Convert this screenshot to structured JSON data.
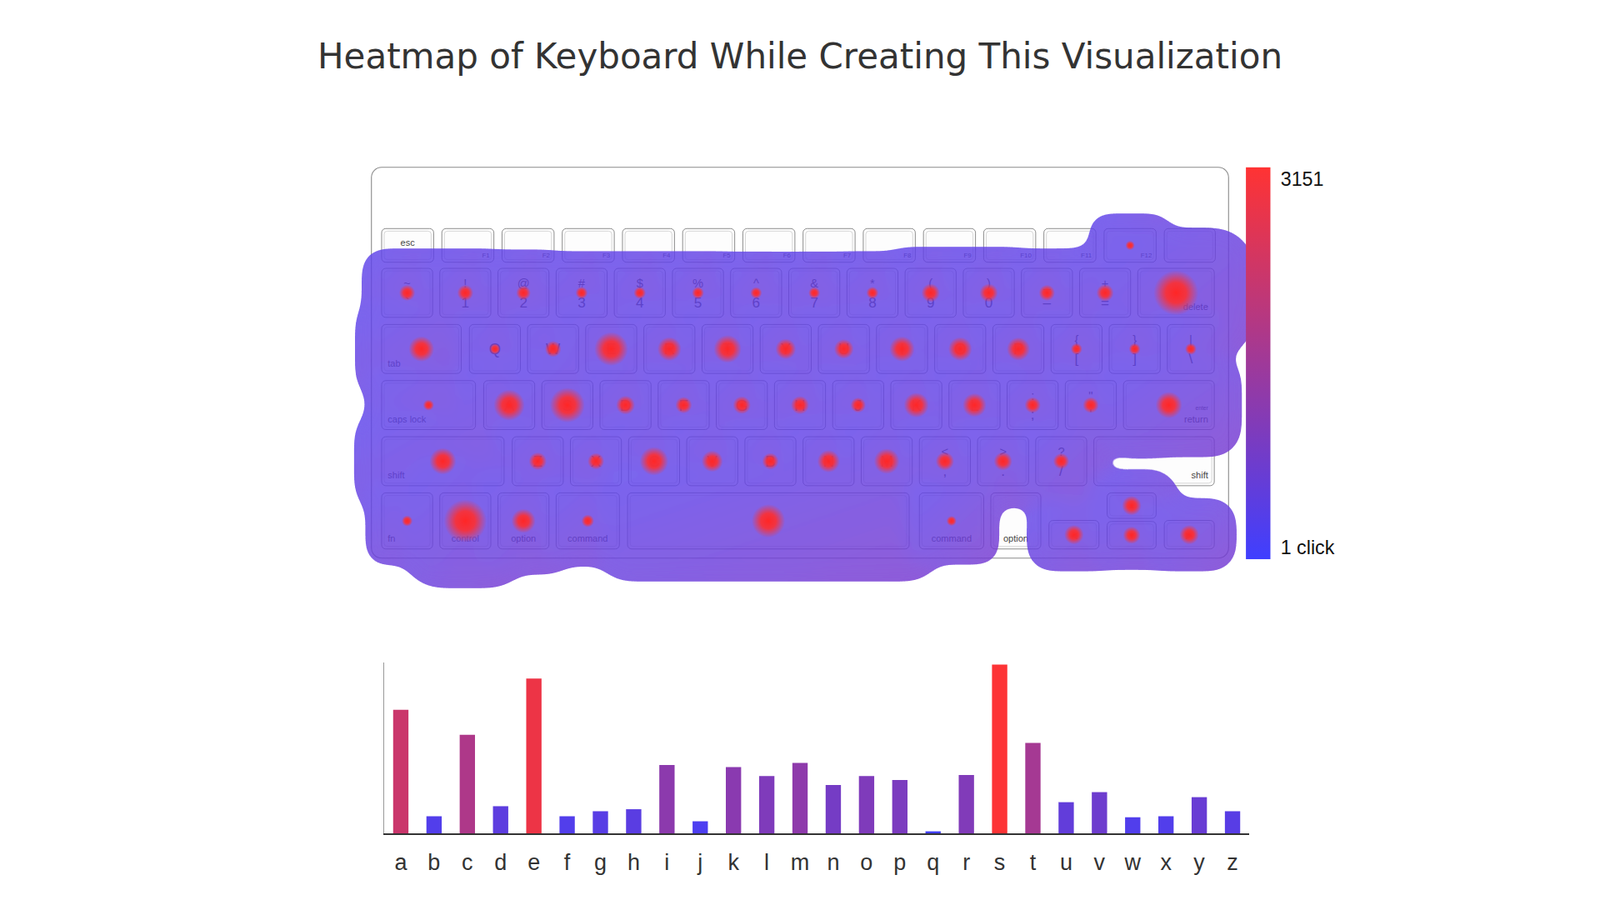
{
  "chart_data": {
    "type": "bar",
    "title": "Heatmap of Keyboard While Creating This Visualization",
    "categories": [
      "a",
      "b",
      "c",
      "d",
      "e",
      "f",
      "g",
      "h",
      "i",
      "j",
      "k",
      "l",
      "m",
      "n",
      "o",
      "p",
      "q",
      "r",
      "s",
      "t",
      "u",
      "v",
      "w",
      "x",
      "y",
      "z"
    ],
    "values": [
      1230,
      170,
      980,
      270,
      1540,
      170,
      220,
      240,
      680,
      120,
      660,
      570,
      700,
      480,
      570,
      530,
      20,
      580,
      1680,
      900,
      310,
      410,
      160,
      170,
      360,
      220
    ],
    "ylim": [
      0,
      1700
    ],
    "tick_labels": "x",
    "grid": false
  },
  "keyboard": {
    "colorbar": {
      "range": [
        1,
        3151
      ],
      "ticks": [
        {
          "value": 3151,
          "label": "3151"
        },
        {
          "value": 1,
          "label": "1 click"
        }
      ]
    },
    "rows": [
      [
        {
          "label": "esc"
        },
        {
          "label": "F1"
        },
        {
          "label": "F2"
        },
        {
          "label": "F3"
        },
        {
          "label": "F4"
        },
        {
          "label": "F5"
        },
        {
          "label": "F6"
        },
        {
          "label": "F7"
        },
        {
          "label": "F8"
        },
        {
          "label": "F9"
        },
        {
          "label": "F10"
        },
        {
          "label": "F11"
        },
        {
          "label": "F12",
          "count": 5
        }
      ],
      [
        {
          "top": "~",
          "label": "`",
          "count": 150
        },
        {
          "top": "!",
          "label": "1",
          "count": 150
        },
        {
          "top": "@",
          "label": "2",
          "count": 100
        },
        {
          "top": "#",
          "label": "3",
          "count": 40
        },
        {
          "top": "$",
          "label": "4",
          "count": 40
        },
        {
          "top": "%",
          "label": "5",
          "count": 40
        },
        {
          "top": "^",
          "label": "6",
          "count": 30
        },
        {
          "top": "&",
          "label": "7",
          "count": 30
        },
        {
          "top": "*",
          "label": "8",
          "count": 40
        },
        {
          "top": "(",
          "label": "9",
          "count": 250
        },
        {
          "top": ")",
          "label": "0",
          "count": 250
        },
        {
          "top": "_",
          "label": "–",
          "count": 150
        },
        {
          "top": "+",
          "label": "=",
          "count": 200
        },
        {
          "label": "delete",
          "count": 3151
        }
      ],
      [
        {
          "label": "tab",
          "count": 700
        },
        {
          "label": "Q"
        },
        {
          "label": "W"
        },
        {
          "label": "E"
        },
        {
          "label": "R"
        },
        {
          "label": "T"
        },
        {
          "label": "Y"
        },
        {
          "label": "U"
        },
        {
          "label": "I"
        },
        {
          "label": "O"
        },
        {
          "label": "P"
        },
        {
          "top": "{",
          "label": "[",
          "count": 30
        },
        {
          "top": "}",
          "label": "]",
          "count": 30
        },
        {
          "top": "|",
          "label": "\\",
          "count": 30
        }
      ],
      [
        {
          "label": "caps lock",
          "count": 20
        },
        {
          "label": "A"
        },
        {
          "label": "S"
        },
        {
          "label": "D"
        },
        {
          "label": "F"
        },
        {
          "label": "G"
        },
        {
          "label": "H"
        },
        {
          "label": "J"
        },
        {
          "label": "K"
        },
        {
          "label": "L"
        },
        {
          "top": ":",
          "label": ";",
          "count": 150
        },
        {
          "top": "\"",
          "label": "'",
          "count": 150
        },
        {
          "top": "enter",
          "label": "return",
          "count": 800
        }
      ],
      [
        {
          "label": "shift",
          "count": 800
        },
        {
          "label": "Z"
        },
        {
          "label": "X"
        },
        {
          "label": "C"
        },
        {
          "label": "V"
        },
        {
          "label": "B"
        },
        {
          "label": "N"
        },
        {
          "label": "M"
        },
        {
          "top": "<",
          "label": ",",
          "count": 250
        },
        {
          "top": ">",
          "label": ".",
          "count": 250
        },
        {
          "top": "?",
          "label": "/",
          "count": 150
        },
        {
          "label": "shift"
        }
      ],
      [
        {
          "label": "fn",
          "count": 20
        },
        {
          "label": "control",
          "count": 2800
        },
        {
          "label": "option",
          "count": 600
        },
        {
          "label": "command",
          "count": 50
        },
        {
          "count": 1500
        },
        {
          "label": "command",
          "count": 10
        },
        {
          "label": "option"
        },
        {
          "label": "◀",
          "count": 300
        },
        {
          "label": "▲",
          "count": 300
        },
        {
          "label": "▼",
          "count": 200
        },
        {
          "label": "▶",
          "count": 300
        }
      ]
    ]
  }
}
